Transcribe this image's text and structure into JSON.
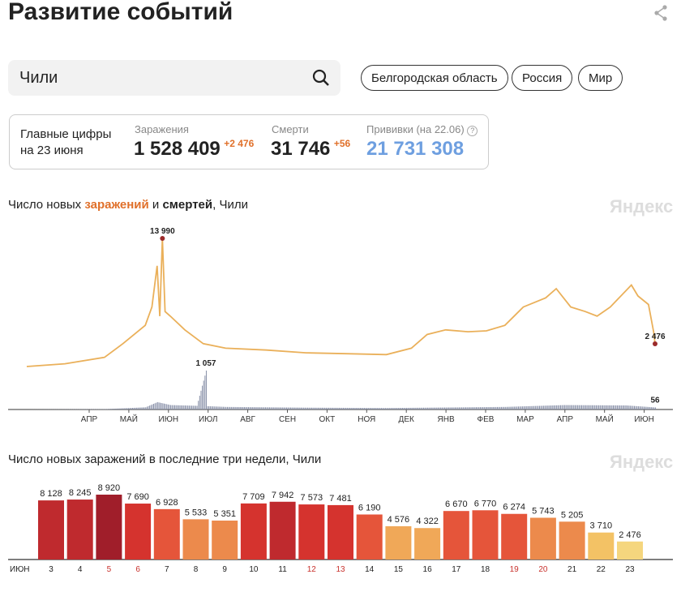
{
  "header": {
    "title": "Развитие событий",
    "share_icon": "share-icon"
  },
  "search": {
    "value": "Чили",
    "icon": "search-icon"
  },
  "region_buttons": [
    "Белгородская область",
    "Россия",
    "Мир"
  ],
  "stats": {
    "caption_line1": "Главные цифры",
    "caption_line2": "на 23 июня",
    "infections": {
      "label": "Заражения",
      "value": "1 528 409",
      "delta": "+2 476"
    },
    "deaths": {
      "label": "Смерти",
      "value": "31 746",
      "delta": "+56"
    },
    "vaccinations": {
      "label": "Прививки (на 22.06)",
      "value": "21 731 308",
      "help_icon": "question-icon"
    }
  },
  "colors": {
    "infections": "#e0702a",
    "vaccinations": "#6e9fe0",
    "line": "#eab05a",
    "deaths": "#8890a8",
    "weekend": "#c8322d"
  },
  "chart_data": [
    {
      "type": "line",
      "title_parts": [
        "Число новых ",
        "заражений",
        " и ",
        "смертей",
        ", Чили"
      ],
      "watermark": "Яндекс",
      "x_ticks": [
        "АПР",
        "МАЙ",
        "ИЮН",
        "ИЮЛ",
        "АВГ",
        "СЕН",
        "ОКТ",
        "НОЯ",
        "ДЕК",
        "ЯНВ",
        "ФЕВ",
        "МАР",
        "АПР",
        "МАЙ",
        "ИЮН"
      ],
      "xlim": [
        "2020-03-03",
        "2021-06-23"
      ],
      "series": [
        {
          "kind": "infections",
          "points": [
            [
              "2020-03-03",
              0
            ],
            [
              "2020-04-01",
              300
            ],
            [
              "2020-05-01",
              1000
            ],
            [
              "2020-05-15",
              2500
            ],
            [
              "2020-06-01",
              4500
            ],
            [
              "2020-06-06",
              6500
            ],
            [
              "2020-06-10",
              11000
            ],
            [
              "2020-06-12",
              5500
            ],
            [
              "2020-06-14",
              13990
            ],
            [
              "2020-06-16",
              6000
            ],
            [
              "2020-06-20",
              5500
            ],
            [
              "2020-07-01",
              4000
            ],
            [
              "2020-07-15",
              2500
            ],
            [
              "2020-08-01",
              2000
            ],
            [
              "2020-09-01",
              1800
            ],
            [
              "2020-10-01",
              1500
            ],
            [
              "2020-11-01",
              1400
            ],
            [
              "2020-12-01",
              1300
            ],
            [
              "2020-12-20",
              2000
            ],
            [
              "2021-01-01",
              3500
            ],
            [
              "2021-01-15",
              4000
            ],
            [
              "2021-02-01",
              3800
            ],
            [
              "2021-02-15",
              3900
            ],
            [
              "2021-03-01",
              4500
            ],
            [
              "2021-03-15",
              6500
            ],
            [
              "2021-04-01",
              7500
            ],
            [
              "2021-04-09",
              8500
            ],
            [
              "2021-04-20",
              6500
            ],
            [
              "2021-05-01",
              6000
            ],
            [
              "2021-05-10",
              5500
            ],
            [
              "2021-05-20",
              6500
            ],
            [
              "2021-06-05",
              8900
            ],
            [
              "2021-06-10",
              7700
            ],
            [
              "2021-06-18",
              6770
            ],
            [
              "2021-06-22",
              3710
            ],
            [
              "2021-06-23",
              2476
            ]
          ],
          "annotations": [
            {
              "date": "2020-06-14",
              "label": "13 990"
            },
            {
              "date": "2021-06-23",
              "label": "2 476"
            }
          ]
        },
        {
          "kind": "deaths",
          "points": [
            [
              "2020-03-03",
              0
            ],
            [
              "2020-05-01",
              10
            ],
            [
              "2020-06-01",
              60
            ],
            [
              "2020-06-10",
              200
            ],
            [
              "2020-06-20",
              120
            ],
            [
              "2020-07-10",
              100
            ],
            [
              "2020-07-17",
              1057
            ],
            [
              "2020-07-18",
              90
            ],
            [
              "2020-08-01",
              70
            ],
            [
              "2020-10-01",
              50
            ],
            [
              "2020-12-01",
              40
            ],
            [
              "2021-01-01",
              50
            ],
            [
              "2021-03-01",
              70
            ],
            [
              "2021-04-15",
              120
            ],
            [
              "2021-06-01",
              110
            ],
            [
              "2021-06-23",
              56
            ]
          ],
          "annotations": [
            {
              "date": "2020-07-17",
              "label": "1 057"
            },
            {
              "date": "2021-06-23",
              "label": "56"
            }
          ]
        }
      ]
    },
    {
      "type": "bar",
      "title": "Число новых заражений в последние три недели, Чили",
      "watermark": "Яндекс",
      "month_label": "ИЮН",
      "categories": [
        "3",
        "4",
        "5",
        "6",
        "7",
        "8",
        "9",
        "10",
        "11",
        "12",
        "13",
        "14",
        "15",
        "16",
        "17",
        "18",
        "19",
        "20",
        "21",
        "22",
        "23"
      ],
      "weekend": [
        "5",
        "6",
        "12",
        "13",
        "19",
        "20"
      ],
      "values": [
        8128,
        8245,
        8920,
        7690,
        6928,
        5533,
        5351,
        7709,
        7942,
        7573,
        7481,
        6190,
        4576,
        4322,
        6670,
        6770,
        6274,
        5743,
        5205,
        3710,
        2476
      ],
      "value_labels": [
        "8 128",
        "8 245",
        "8 920",
        "7 690",
        "6 928",
        "5 533",
        "5 351",
        "7 709",
        "7 942",
        "7 573",
        "7 481",
        "6 190",
        "4 576",
        "4 322",
        "6 670",
        "6 770",
        "6 274",
        "5 743",
        "5 205",
        "3 710",
        "2 476"
      ]
    }
  ]
}
